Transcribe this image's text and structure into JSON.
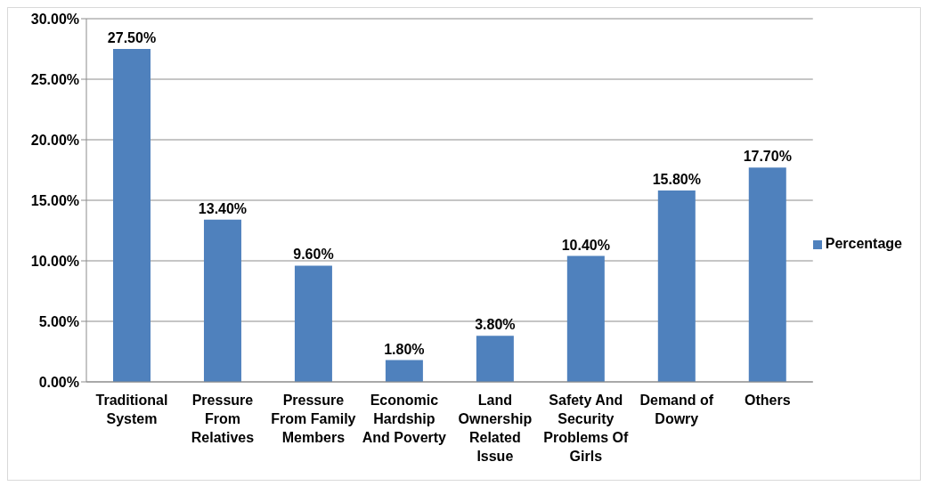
{
  "chart_data": {
    "type": "bar",
    "categories": [
      "Traditional System",
      "Pressure From Relatives",
      "Pressure From Family Members",
      "Economic Hardship And Poverty",
      "Land Ownership Related Issue",
      "Safety And Security Problems Of Girls",
      "Demand of Dowry",
      "Others"
    ],
    "series": [
      {
        "name": "Percentage",
        "color": "#4f81bd",
        "values": [
          27.5,
          13.4,
          9.6,
          1.8,
          3.8,
          10.4,
          15.8,
          17.7
        ],
        "value_labels": [
          "27.50%",
          "13.40%",
          "9.60%",
          "1.80%",
          "3.80%",
          "10.40%",
          "15.80%",
          "17.70%"
        ]
      }
    ],
    "ylim": [
      0,
      30
    ],
    "yticks": [
      {
        "value": 0,
        "label": "0.00%"
      },
      {
        "value": 5,
        "label": "5.00%"
      },
      {
        "value": 10,
        "label": "10.00%"
      },
      {
        "value": 15,
        "label": "15.00%"
      },
      {
        "value": 20,
        "label": "20.00%"
      },
      {
        "value": 25,
        "label": "25.00%"
      },
      {
        "value": 30,
        "label": "30.00%"
      }
    ],
    "grid": "y",
    "legend": "right"
  }
}
